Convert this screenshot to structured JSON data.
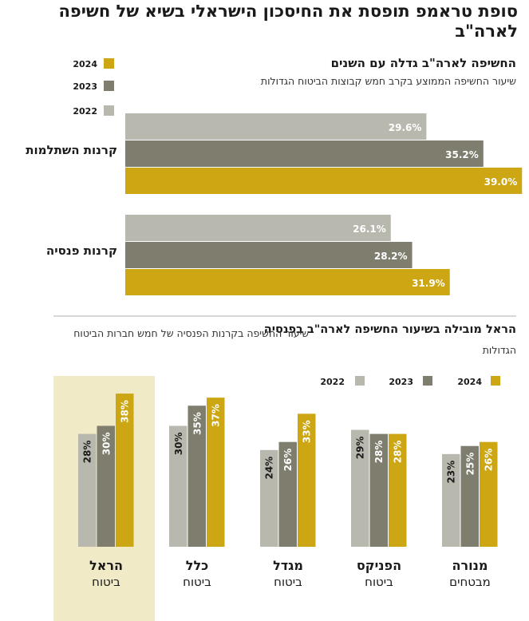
{
  "title": "סופת טראמפ תופסת את החיסכון הישראלי בשיא של חשיפה לארה\"ב",
  "colors": {
    "y2022": "#b8b8ae",
    "y2023": "#7f7e6e",
    "y2024": "#cda614",
    "highlight": "#f0ebc6"
  },
  "chart_data": [
    {
      "type": "bar",
      "orientation": "horizontal",
      "title": "החשיפה לארה\"ב גדלה עם השנים",
      "subtitle": "שיעור החשיפה הממוצע בקרב חמש קבוצות הביטוח הגדולות",
      "categories": [
        "קרנות השתלמות",
        "קרנות פנסיה"
      ],
      "series": [
        {
          "name": "2022",
          "values": [
            29.6,
            26.1
          ],
          "labels": [
            "29.6%",
            "26.1%"
          ]
        },
        {
          "name": "2023",
          "values": [
            35.2,
            28.2
          ],
          "labels": [
            "35.2%",
            "28.2%"
          ]
        },
        {
          "name": "2024",
          "values": [
            39.0,
            31.9
          ],
          "labels": [
            "39.0%",
            "31.9%"
          ]
        }
      ],
      "legend": "top-right"
    },
    {
      "type": "bar",
      "orientation": "vertical",
      "title": "הראל מובילה בשיעור החשיפה לארה\"ב בפנסיה",
      "subtitle": "שיעור החשיפה בקרנות הפנסיה של חמש חברות הביטוח הגדולות",
      "categories": [
        {
          "name": "הראל",
          "sub": "ביטוח"
        },
        {
          "name": "כלל",
          "sub": "ביטוח"
        },
        {
          "name": "מגדל",
          "sub": "ביטוח"
        },
        {
          "name": "הפניקס",
          "sub": "ביטוח"
        },
        {
          "name": "מנורה",
          "sub": "מבטחים"
        }
      ],
      "series": [
        {
          "name": "2022",
          "values": [
            28,
            30,
            24,
            29,
            23
          ],
          "labels": [
            "28%",
            "30%",
            "24%",
            "29%",
            "23%"
          ]
        },
        {
          "name": "2023",
          "values": [
            30,
            35,
            26,
            28,
            25
          ],
          "labels": [
            "30%",
            "35%",
            "26%",
            "28%",
            "25%"
          ]
        },
        {
          "name": "2024",
          "values": [
            38,
            37,
            33,
            28,
            26
          ],
          "labels": [
            "38%",
            "37%",
            "33%",
            "28%",
            "26%"
          ]
        }
      ],
      "legend": "top-right"
    }
  ]
}
